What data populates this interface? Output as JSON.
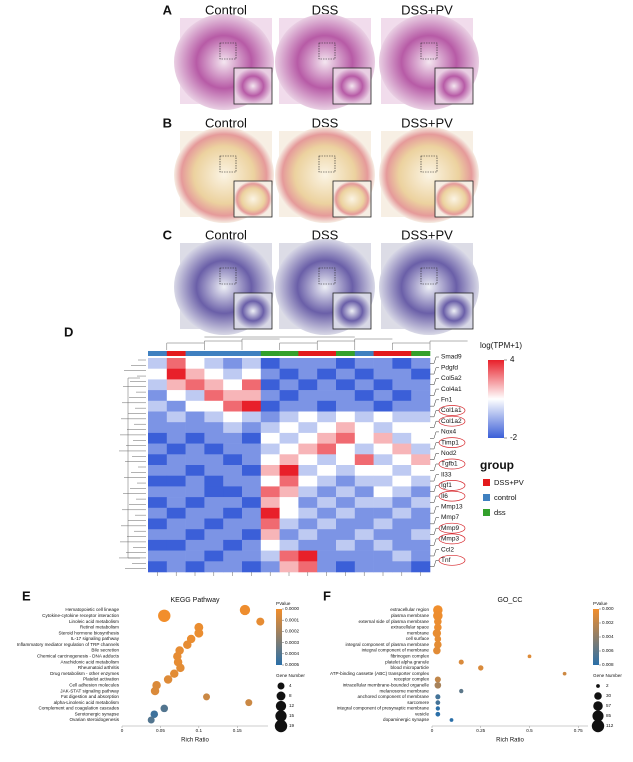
{
  "panels": {
    "labels": [
      "A",
      "B",
      "C"
    ],
    "columns": [
      "Control",
      "DSS",
      "DSS+PV"
    ]
  },
  "heatmap": {
    "label": "D",
    "legend_title": "log(TPM+1)",
    "scale_ticks": [
      4,
      -2
    ],
    "scale_colors": [
      "#3b5fd8",
      "#ffffff",
      "#e8202a"
    ],
    "group_title": "group",
    "groups": [
      {
        "name": "DSS+PV",
        "color": "#e31a1c"
      },
      {
        "name": "control",
        "color": "#3f80c0"
      },
      {
        "name": "dss",
        "color": "#33a02c"
      }
    ],
    "column_groups": [
      1,
      0,
      1,
      1,
      1,
      1,
      2,
      2,
      0,
      0,
      2,
      1,
      0,
      0,
      2
    ],
    "genes": [
      "Smad9",
      "Pdgfd",
      "Col5a2",
      "Col4a1",
      "Fn1",
      "Col1a1",
      "Col1a2",
      "Nox4",
      "Timp1",
      "Nod2",
      "Tgfb1",
      "Il33",
      "Igf1",
      "Il6",
      "Mmp13",
      "Mmp7",
      "Mmp9",
      "Mmp3",
      "Ccl2",
      "Tnf"
    ],
    "circled": [
      5,
      6,
      8,
      10,
      12,
      13,
      16,
      17,
      19
    ],
    "matrix": [
      [
        0,
        3,
        1,
        0,
        -1,
        0,
        -2,
        -1,
        -1,
        -1,
        -2,
        -1,
        -1,
        -2,
        -1
      ],
      [
        1,
        4,
        2,
        1,
        0,
        1,
        -1,
        -2,
        -1,
        -2,
        -1,
        -2,
        -1,
        -1,
        -2
      ],
      [
        0,
        2,
        3,
        2,
        1,
        3,
        -2,
        -1,
        -2,
        -1,
        -2,
        -1,
        -2,
        -1,
        -1
      ],
      [
        -1,
        1,
        0,
        3,
        2,
        2,
        -1,
        -2,
        -1,
        -1,
        -1,
        -2,
        -1,
        -2,
        -1
      ],
      [
        0,
        -1,
        1,
        1,
        3,
        4,
        -2,
        -1,
        -1,
        -2,
        -1,
        -1,
        -2,
        -1,
        -1
      ],
      [
        -1,
        0,
        -1,
        0,
        1,
        0,
        -1,
        0,
        1,
        0,
        1,
        0,
        1,
        0,
        0
      ],
      [
        -1,
        -1,
        -1,
        -1,
        0,
        -1,
        0,
        1,
        0,
        1,
        2,
        1,
        0,
        1,
        1
      ],
      [
        -2,
        -1,
        -2,
        -1,
        -1,
        -2,
        1,
        0,
        1,
        2,
        3,
        1,
        2,
        0,
        1
      ],
      [
        -1,
        -2,
        -1,
        -2,
        -1,
        -1,
        0,
        1,
        2,
        3,
        1,
        0,
        1,
        2,
        0
      ],
      [
        -2,
        -1,
        -1,
        -1,
        -2,
        -1,
        1,
        2,
        1,
        0,
        1,
        3,
        0,
        1,
        2
      ],
      [
        -1,
        -1,
        -2,
        -1,
        -1,
        -2,
        2,
        4,
        0,
        1,
        0,
        1,
        1,
        0,
        1
      ],
      [
        -2,
        -2,
        -1,
        -2,
        -1,
        -1,
        1,
        3,
        1,
        0,
        -1,
        0,
        0,
        1,
        0
      ],
      [
        -1,
        -1,
        -1,
        -2,
        -2,
        -1,
        3,
        2,
        0,
        -1,
        0,
        -1,
        1,
        0,
        -1
      ],
      [
        -2,
        -1,
        -2,
        -1,
        -1,
        -2,
        2,
        1,
        -1,
        0,
        -1,
        0,
        0,
        -1,
        0
      ],
      [
        -1,
        -2,
        -1,
        -1,
        -2,
        -1,
        4,
        1,
        0,
        -1,
        0,
        -1,
        -1,
        0,
        -1
      ],
      [
        -2,
        -1,
        -1,
        -2,
        -1,
        -1,
        3,
        0,
        -1,
        0,
        -1,
        -1,
        0,
        -1,
        -1
      ],
      [
        -1,
        -1,
        -2,
        -1,
        -1,
        -2,
        2,
        -1,
        0,
        -1,
        -1,
        0,
        -1,
        -1,
        0
      ],
      [
        -2,
        -2,
        -1,
        -1,
        -2,
        -1,
        1,
        0,
        -1,
        -1,
        0,
        -1,
        0,
        -1,
        -1
      ],
      [
        -1,
        -1,
        -1,
        -2,
        -1,
        -1,
        0,
        3,
        4,
        -1,
        -1,
        -1,
        -1,
        0,
        -1
      ],
      [
        -2,
        -1,
        -2,
        -1,
        -1,
        -2,
        -1,
        2,
        3,
        -1,
        -2,
        -1,
        -1,
        -1,
        -2
      ]
    ]
  },
  "chart_data": [
    {
      "type": "dot",
      "label": "E",
      "title": "KEGG Pathway",
      "x_label": "Rich Ratio",
      "color_title": "PValue",
      "size_title": "Gene Number",
      "colors": [
        "#f28e2b",
        "#2a6fa8"
      ],
      "categories": [
        "Hematopoietic cell lineage",
        "Cytokine-cytokine receptor interaction",
        "Linoleic acid metabolism",
        "Retinol metabolism",
        "Steroid hormone biosynthesis",
        "IL-17 signaling pathway",
        "Inflammatory mediator regulation of TRP channels",
        "Bile secretion",
        "Chemical carcinogenesis - DNA adducts",
        "Arachidonic acid metabolism",
        "Rheumatoid arthritis",
        "Drug metabolism - other enzymes",
        "Platelet activation",
        "Cell adhesion molecules",
        "JAK-STAT signaling pathway",
        "Fat digestion and absorption",
        "alpha-Linolenic acid metabolism",
        "Complement and coagulation cascades",
        "Serotonergic synapse",
        "Ovarian steroidogenesis"
      ],
      "x": [
        0.16,
        0.055,
        0.18,
        0.1,
        0.1,
        0.09,
        0.085,
        0.075,
        0.072,
        0.073,
        0.076,
        0.068,
        0.06,
        0.045,
        0.043,
        0.11,
        0.165,
        0.055,
        0.042,
        0.038
      ],
      "pvalue": [
        1e-05,
        1e-06,
        3e-05,
        2e-05,
        2e-05,
        2e-05,
        3e-05,
        3e-05,
        3e-05,
        3e-05,
        4e-05,
        4e-05,
        5e-05,
        6e-05,
        6e-05,
        0.0001,
        0.0001,
        0.0004,
        0.00045,
        0.0004
      ],
      "gene_number": [
        12,
        19,
        6,
        8,
        8,
        7,
        7,
        7,
        7,
        7,
        7,
        7,
        7,
        7,
        7,
        4,
        4,
        5,
        5,
        4
      ],
      "xlim": [
        0,
        0.19
      ],
      "xticks": [
        0,
        0.05,
        0.1,
        0.15
      ],
      "pvalue_lim": [
        0,
        0.0005
      ],
      "pvalue_ticks": [
        {
          "value": 0,
          "label": "0.0000"
        },
        {
          "value": 0.0001,
          "label": "0.0001"
        },
        {
          "value": 0.0002,
          "label": "0.0002"
        },
        {
          "value": 0.0003,
          "label": "0.0003"
        },
        {
          "value": 0.0004,
          "label": "0.0004"
        },
        {
          "value": 0.0005,
          "label": "0.0005"
        }
      ],
      "size_ticks": [
        4,
        8,
        12,
        15,
        19
      ]
    },
    {
      "type": "dot",
      "label": "F",
      "title": "GO_CC",
      "x_label": "Rich Ratio",
      "color_title": "PValue",
      "size_title": "Gene Number",
      "colors": [
        "#f28e2b",
        "#2a6fa8"
      ],
      "categories": [
        "extracellular region",
        "plasma membrane",
        "external side of plasma membrane",
        "extracellular space",
        "membrane",
        "cell surface",
        "integral component of plasma membrane",
        "integral component of membrane",
        "fibrinogen complex",
        "platelet alpha granule",
        "blood microparticle",
        "ATP-binding cassette (ABC) transporter complex",
        "receptor complex",
        "intracellular membrane-bounded organelle",
        "melanosome membrane",
        "anchored component of membrane",
        "sarcomere",
        "integral component of presynaptic membrane",
        "vesicle",
        "dopaminergic synapse"
      ],
      "x": [
        0.03,
        0.03,
        0.03,
        0.03,
        0.025,
        0.03,
        0.03,
        0.025,
        0.5,
        0.15,
        0.25,
        0.68,
        0.03,
        0.03,
        0.15,
        0.03,
        0.03,
        0.03,
        0.03,
        0.1
      ],
      "pvalue": [
        0.0001,
        0.0002,
        0.0003,
        0.0003,
        0.0004,
        0.0005,
        0.0006,
        0.0007,
        0.0008,
        0.001,
        0.001,
        0.0015,
        0.002,
        0.003,
        0.006,
        0.007,
        0.007,
        0.008,
        0.008,
        0.008
      ],
      "gene_number": [
        57,
        57,
        30,
        30,
        40,
        20,
        30,
        30,
        2,
        8,
        10,
        2,
        15,
        20,
        4,
        8,
        6,
        4,
        6,
        2
      ],
      "xlim": [
        0,
        0.8
      ],
      "xticks": [
        0,
        0.25,
        0.5,
        0.75
      ],
      "pvalue_lim": [
        0,
        0.008
      ],
      "pvalue_ticks": [
        {
          "value": 0,
          "label": "0.000"
        },
        {
          "value": 0.002,
          "label": "0.002"
        },
        {
          "value": 0.004,
          "label": "0.004"
        },
        {
          "value": 0.006,
          "label": "0.006"
        },
        {
          "value": 0.008,
          "label": "0.008"
        }
      ],
      "size_ticks": [
        2,
        30,
        57,
        85,
        112
      ]
    }
  ]
}
